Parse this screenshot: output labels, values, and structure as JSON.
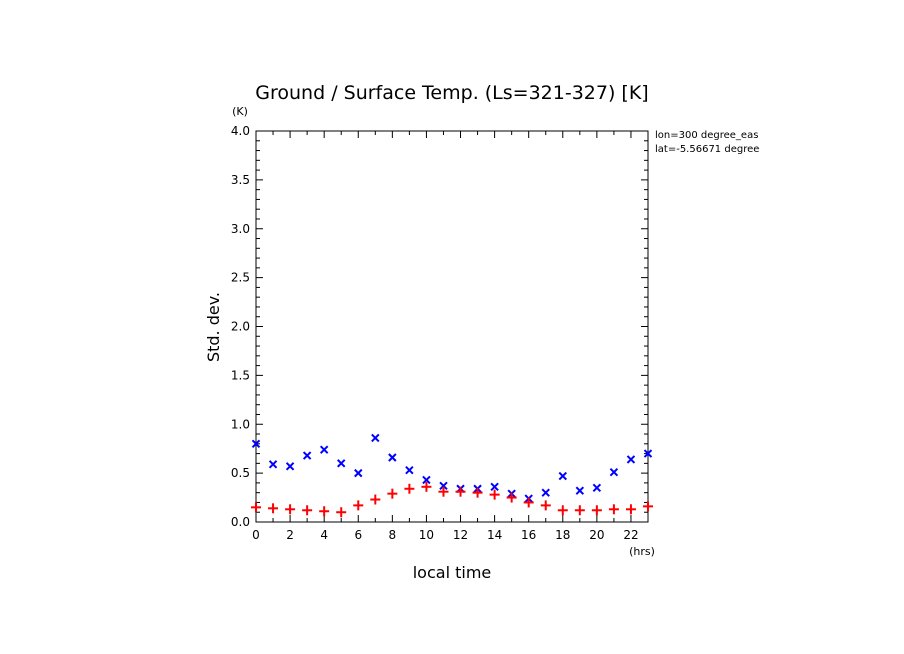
{
  "chart_data": {
    "type": "scatter",
    "title": "Ground / Surface Temp. (Ls=321-327) [K]",
    "xlabel": "local time",
    "ylabel": "Std. dev.",
    "x_unit": "(hrs)",
    "y_unit": "(K)",
    "xlim": [
      0,
      23
    ],
    "ylim": [
      0,
      4.0
    ],
    "x_ticks": [
      "0",
      "2",
      "4",
      "6",
      "8",
      "10",
      "12",
      "14",
      "16",
      "18",
      "20",
      "22"
    ],
    "y_ticks": [
      "0.0",
      "0.5",
      "1.0",
      "1.5",
      "2.0",
      "2.5",
      "3.0",
      "3.5",
      "4.0"
    ],
    "annotations": [
      "lon=300 degree_eas",
      "lat=-5.56671 degree"
    ],
    "grid": false,
    "series": [
      {
        "marker": "x",
        "color": "#0000ff",
        "x": [
          0,
          1,
          2,
          3,
          4,
          5,
          6,
          7,
          8,
          9,
          10,
          11,
          12,
          13,
          14,
          15,
          16,
          17,
          18,
          19,
          20,
          21,
          22,
          23
        ],
        "y": [
          0.8,
          0.59,
          0.57,
          0.68,
          0.74,
          0.6,
          0.5,
          0.86,
          0.66,
          0.53,
          0.43,
          0.37,
          0.34,
          0.34,
          0.36,
          0.29,
          0.24,
          0.3,
          0.47,
          0.32,
          0.35,
          0.51,
          0.64,
          0.7
        ]
      },
      {
        "marker": "+",
        "color": "#ff0000",
        "x": [
          0,
          1,
          2,
          3,
          4,
          5,
          6,
          7,
          8,
          9,
          10,
          11,
          12,
          13,
          14,
          15,
          16,
          17,
          18,
          19,
          20,
          21,
          22,
          23
        ],
        "y": [
          0.15,
          0.14,
          0.13,
          0.12,
          0.11,
          0.1,
          0.17,
          0.23,
          0.29,
          0.34,
          0.36,
          0.31,
          0.31,
          0.3,
          0.28,
          0.25,
          0.2,
          0.17,
          0.12,
          0.12,
          0.12,
          0.13,
          0.13,
          0.16
        ]
      }
    ]
  }
}
